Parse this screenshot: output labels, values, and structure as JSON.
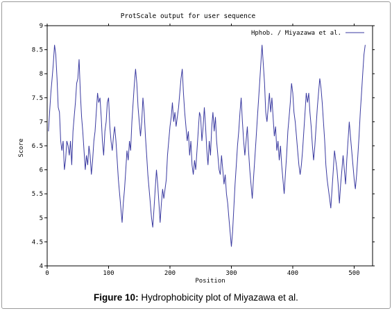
{
  "chart_data": {
    "type": "line",
    "title": "ProtScale output for user sequence",
    "xlabel": "Position",
    "ylabel": "Score",
    "xlim": [
      0,
      530
    ],
    "ylim": [
      4,
      9
    ],
    "x_ticks": [
      "0",
      "100",
      "200",
      "300",
      "400",
      "500"
    ],
    "y_ticks": [
      "4",
      "4.5",
      "5",
      "5.5",
      "6",
      "6.5",
      "7",
      "7.5",
      "8",
      "8.5",
      "9"
    ],
    "legend_position": "top-right",
    "series": [
      {
        "name": "Hphob. / Miyazawa et al.",
        "color": "#3a3aa0",
        "points": [
          [
            2,
            6.8
          ],
          [
            4,
            7.2
          ],
          [
            6,
            7.6
          ],
          [
            8,
            7.9
          ],
          [
            10,
            8.2
          ],
          [
            12,
            8.6
          ],
          [
            14,
            8.4
          ],
          [
            16,
            7.9
          ],
          [
            18,
            7.3
          ],
          [
            20,
            7.2
          ],
          [
            22,
            6.6
          ],
          [
            24,
            6.4
          ],
          [
            26,
            6.6
          ],
          [
            28,
            6.0
          ],
          [
            30,
            6.2
          ],
          [
            32,
            6.6
          ],
          [
            34,
            6.5
          ],
          [
            36,
            6.3
          ],
          [
            38,
            6.6
          ],
          [
            40,
            6.1
          ],
          [
            42,
            6.8
          ],
          [
            44,
            7.1
          ],
          [
            46,
            7.4
          ],
          [
            48,
            7.8
          ],
          [
            50,
            7.9
          ],
          [
            52,
            8.3
          ],
          [
            54,
            7.6
          ],
          [
            56,
            7.1
          ],
          [
            58,
            6.8
          ],
          [
            60,
            6.4
          ],
          [
            62,
            6.0
          ],
          [
            64,
            6.3
          ],
          [
            66,
            6.1
          ],
          [
            68,
            6.5
          ],
          [
            70,
            6.3
          ],
          [
            72,
            5.9
          ],
          [
            74,
            6.2
          ],
          [
            76,
            6.6
          ],
          [
            78,
            6.8
          ],
          [
            80,
            7.2
          ],
          [
            82,
            7.6
          ],
          [
            84,
            7.4
          ],
          [
            86,
            7.5
          ],
          [
            88,
            7.1
          ],
          [
            90,
            6.6
          ],
          [
            92,
            6.3
          ],
          [
            94,
            6.8
          ],
          [
            96,
            7.0
          ],
          [
            98,
            7.4
          ],
          [
            100,
            7.5
          ],
          [
            102,
            6.9
          ],
          [
            104,
            6.6
          ],
          [
            106,
            6.4
          ],
          [
            108,
            6.7
          ],
          [
            110,
            6.9
          ],
          [
            112,
            6.6
          ],
          [
            114,
            6.2
          ],
          [
            116,
            5.8
          ],
          [
            118,
            5.5
          ],
          [
            120,
            5.2
          ],
          [
            122,
            4.9
          ],
          [
            124,
            5.3
          ],
          [
            126,
            5.6
          ],
          [
            128,
            6.0
          ],
          [
            130,
            6.4
          ],
          [
            132,
            6.2
          ],
          [
            134,
            6.6
          ],
          [
            136,
            6.4
          ],
          [
            138,
            7.0
          ],
          [
            140,
            7.4
          ],
          [
            142,
            7.8
          ],
          [
            144,
            8.1
          ],
          [
            146,
            7.8
          ],
          [
            148,
            7.3
          ],
          [
            150,
            7.0
          ],
          [
            152,
            6.7
          ],
          [
            154,
            7.0
          ],
          [
            156,
            7.5
          ],
          [
            158,
            7.2
          ],
          [
            160,
            6.7
          ],
          [
            162,
            6.3
          ],
          [
            164,
            5.9
          ],
          [
            166,
            5.6
          ],
          [
            168,
            5.3
          ],
          [
            170,
            5.0
          ],
          [
            172,
            4.8
          ],
          [
            174,
            5.2
          ],
          [
            176,
            5.6
          ],
          [
            178,
            6.0
          ],
          [
            180,
            5.7
          ],
          [
            182,
            5.3
          ],
          [
            184,
            4.9
          ],
          [
            186,
            5.3
          ],
          [
            188,
            5.6
          ],
          [
            190,
            5.4
          ],
          [
            192,
            5.6
          ],
          [
            194,
            5.8
          ],
          [
            196,
            6.3
          ],
          [
            198,
            6.6
          ],
          [
            200,
            6.9
          ],
          [
            202,
            7.1
          ],
          [
            204,
            7.4
          ],
          [
            206,
            7.0
          ],
          [
            208,
            7.2
          ],
          [
            210,
            6.9
          ],
          [
            212,
            7.1
          ],
          [
            214,
            7.3
          ],
          [
            216,
            7.6
          ],
          [
            218,
            7.9
          ],
          [
            220,
            8.1
          ],
          [
            222,
            7.6
          ],
          [
            224,
            7.2
          ],
          [
            226,
            6.9
          ],
          [
            228,
            6.6
          ],
          [
            230,
            6.8
          ],
          [
            232,
            6.3
          ],
          [
            234,
            6.6
          ],
          [
            236,
            6.1
          ],
          [
            238,
            5.9
          ],
          [
            240,
            6.2
          ],
          [
            242,
            6.0
          ],
          [
            244,
            6.4
          ],
          [
            246,
            6.8
          ],
          [
            248,
            7.2
          ],
          [
            250,
            7.1
          ],
          [
            252,
            6.6
          ],
          [
            254,
            6.9
          ],
          [
            256,
            7.3
          ],
          [
            258,
            6.9
          ],
          [
            260,
            6.4
          ],
          [
            262,
            6.1
          ],
          [
            264,
            6.6
          ],
          [
            266,
            6.3
          ],
          [
            268,
            6.9
          ],
          [
            270,
            7.2
          ],
          [
            272,
            6.8
          ],
          [
            274,
            7.1
          ],
          [
            276,
            6.6
          ],
          [
            278,
            6.3
          ],
          [
            280,
            6.0
          ],
          [
            282,
            5.9
          ],
          [
            284,
            6.3
          ],
          [
            286,
            6.0
          ],
          [
            288,
            5.7
          ],
          [
            290,
            5.9
          ],
          [
            292,
            5.5
          ],
          [
            294,
            5.3
          ],
          [
            296,
            5.0
          ],
          [
            298,
            4.7
          ],
          [
            300,
            4.4
          ],
          [
            302,
            4.7
          ],
          [
            304,
            5.2
          ],
          [
            306,
            5.7
          ],
          [
            308,
            6.1
          ],
          [
            310,
            6.5
          ],
          [
            312,
            6.8
          ],
          [
            314,
            7.2
          ],
          [
            316,
            7.5
          ],
          [
            318,
            7.0
          ],
          [
            320,
            6.6
          ],
          [
            322,
            6.3
          ],
          [
            324,
            6.6
          ],
          [
            326,
            6.9
          ],
          [
            328,
            6.4
          ],
          [
            330,
            6.0
          ],
          [
            332,
            5.7
          ],
          [
            334,
            5.4
          ],
          [
            336,
            5.8
          ],
          [
            338,
            6.2
          ],
          [
            340,
            6.6
          ],
          [
            342,
            7.0
          ],
          [
            344,
            7.4
          ],
          [
            346,
            7.8
          ],
          [
            348,
            8.2
          ],
          [
            350,
            8.6
          ],
          [
            352,
            8.2
          ],
          [
            354,
            7.8
          ],
          [
            356,
            7.2
          ],
          [
            358,
            7.0
          ],
          [
            360,
            7.3
          ],
          [
            362,
            7.6
          ],
          [
            364,
            7.2
          ],
          [
            366,
            7.5
          ],
          [
            368,
            7.1
          ],
          [
            370,
            6.7
          ],
          [
            372,
            6.9
          ],
          [
            374,
            6.4
          ],
          [
            376,
            6.6
          ],
          [
            378,
            6.2
          ],
          [
            380,
            6.5
          ],
          [
            382,
            6.1
          ],
          [
            384,
            5.8
          ],
          [
            386,
            5.5
          ],
          [
            388,
            5.9
          ],
          [
            390,
            6.3
          ],
          [
            392,
            6.8
          ],
          [
            394,
            7.1
          ],
          [
            396,
            7.4
          ],
          [
            398,
            7.8
          ],
          [
            400,
            7.6
          ],
          [
            402,
            7.2
          ],
          [
            404,
            7.0
          ],
          [
            406,
            6.7
          ],
          [
            408,
            6.4
          ],
          [
            410,
            6.1
          ],
          [
            412,
            5.9
          ],
          [
            414,
            6.1
          ],
          [
            416,
            6.4
          ],
          [
            418,
            6.8
          ],
          [
            420,
            7.2
          ],
          [
            422,
            7.6
          ],
          [
            424,
            7.4
          ],
          [
            426,
            7.6
          ],
          [
            428,
            7.2
          ],
          [
            430,
            6.9
          ],
          [
            432,
            6.5
          ],
          [
            434,
            6.2
          ],
          [
            436,
            6.5
          ],
          [
            438,
            6.9
          ],
          [
            440,
            7.3
          ],
          [
            442,
            7.6
          ],
          [
            444,
            7.9
          ],
          [
            446,
            7.7
          ],
          [
            448,
            7.4
          ],
          [
            450,
            7.0
          ],
          [
            452,
            6.6
          ],
          [
            454,
            6.1
          ],
          [
            456,
            5.8
          ],
          [
            458,
            5.6
          ],
          [
            460,
            5.4
          ],
          [
            462,
            5.2
          ],
          [
            464,
            5.6
          ],
          [
            466,
            6.0
          ],
          [
            468,
            6.4
          ],
          [
            470,
            6.2
          ],
          [
            472,
            6.0
          ],
          [
            474,
            5.7
          ],
          [
            476,
            5.3
          ],
          [
            478,
            5.7
          ],
          [
            480,
            6.0
          ],
          [
            482,
            6.3
          ],
          [
            484,
            6.0
          ],
          [
            486,
            5.7
          ],
          [
            488,
            6.2
          ],
          [
            490,
            6.6
          ],
          [
            492,
            7.0
          ],
          [
            494,
            6.7
          ],
          [
            496,
            6.4
          ],
          [
            498,
            6.1
          ],
          [
            500,
            5.8
          ],
          [
            502,
            5.6
          ],
          [
            504,
            5.9
          ],
          [
            506,
            6.3
          ],
          [
            508,
            6.7
          ],
          [
            510,
            7.2
          ],
          [
            512,
            7.6
          ],
          [
            514,
            8.0
          ],
          [
            516,
            8.4
          ],
          [
            518,
            8.6
          ]
        ]
      }
    ]
  },
  "caption": {
    "label": "Figure 10:",
    "text": "Hydrophobicity plot of Miyazawa et al."
  }
}
